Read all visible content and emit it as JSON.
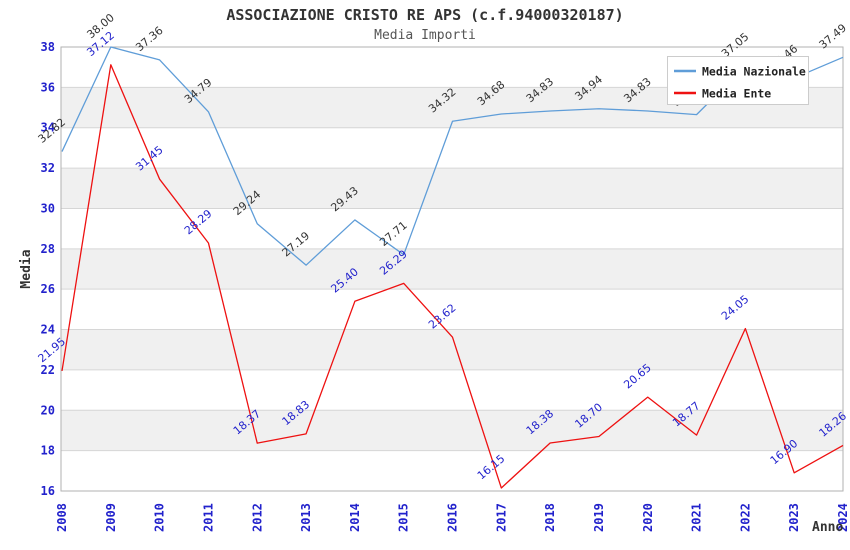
{
  "chart_data": {
    "type": "line",
    "title": "ASSOCIAZIONE CRISTO RE APS (c.f.94000320187)",
    "subtitle": "Media Importi",
    "xlabel": "Anno",
    "ylabel": "Media",
    "categories": [
      "2008",
      "2009",
      "2010",
      "2011",
      "2012",
      "2013",
      "2014",
      "2015",
      "2016",
      "2017",
      "2018",
      "2019",
      "2020",
      "2021",
      "2022",
      "2023",
      "2024"
    ],
    "ylim": [
      16,
      38
    ],
    "yticks": [
      16,
      18,
      20,
      22,
      24,
      26,
      28,
      30,
      32,
      34,
      36,
      38
    ],
    "grid": "horizontal-gridlines-with-alternating-bands",
    "legend_position": "top-right",
    "series": [
      {
        "name": "Media Nazionale",
        "color": "#5f9dd8",
        "label_color": "#333333",
        "values": [
          32.82,
          38.0,
          37.36,
          34.79,
          29.24,
          27.19,
          29.43,
          27.71,
          34.32,
          34.68,
          34.83,
          34.94,
          34.83,
          34.65,
          37.05,
          36.46,
          37.49
        ]
      },
      {
        "name": "Media Ente",
        "color": "#ee1111",
        "label_color": "#2222cc",
        "values": [
          21.95,
          37.12,
          31.45,
          28.29,
          18.37,
          18.83,
          25.4,
          26.29,
          23.62,
          16.15,
          18.38,
          18.7,
          20.65,
          18.77,
          24.05,
          16.9,
          18.26
        ]
      }
    ],
    "colors": {
      "background": "#ffffff",
      "band": "#f0f0f0",
      "gridline": "#d6d6d6",
      "frame": "#b2b2b2",
      "tick_label": "#2222cc",
      "axis_title": "#333333",
      "legend_text": "#222222",
      "legend_border": "#cccccc"
    }
  }
}
